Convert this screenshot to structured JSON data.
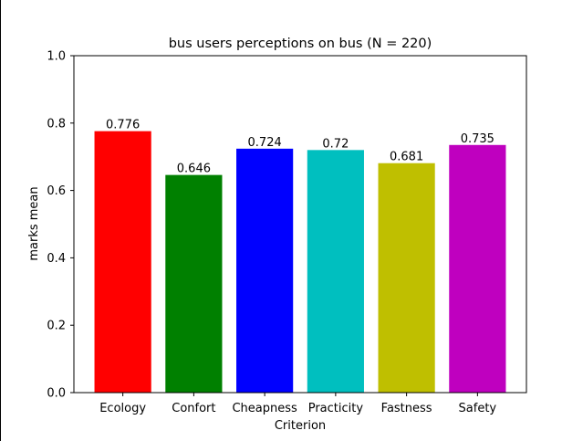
{
  "chart_data": {
    "type": "bar",
    "title": "bus users perceptions on bus (N = 220)",
    "xlabel": "Criterion",
    "ylabel": "marks mean",
    "categories": [
      "Ecology",
      "Confort",
      "Cheapness",
      "Practicity",
      "Fastness",
      "Safety"
    ],
    "values": [
      0.776,
      0.646,
      0.724,
      0.72,
      0.681,
      0.735
    ],
    "value_labels": [
      "0.776",
      "0.646",
      "0.724",
      "0.72",
      "0.681",
      "0.735"
    ],
    "colors": [
      "#ff0000",
      "#008000",
      "#0000ff",
      "#00bfbf",
      "#bfbf00",
      "#bf00bf"
    ],
    "ylim": [
      0,
      1.0
    ],
    "yticks": [
      0.0,
      0.2,
      0.4,
      0.6,
      0.8,
      1.0
    ],
    "ytick_labels": [
      "0.0",
      "0.2",
      "0.4",
      "0.6",
      "0.8",
      "1.0"
    ],
    "grid": false,
    "legend": "none"
  }
}
